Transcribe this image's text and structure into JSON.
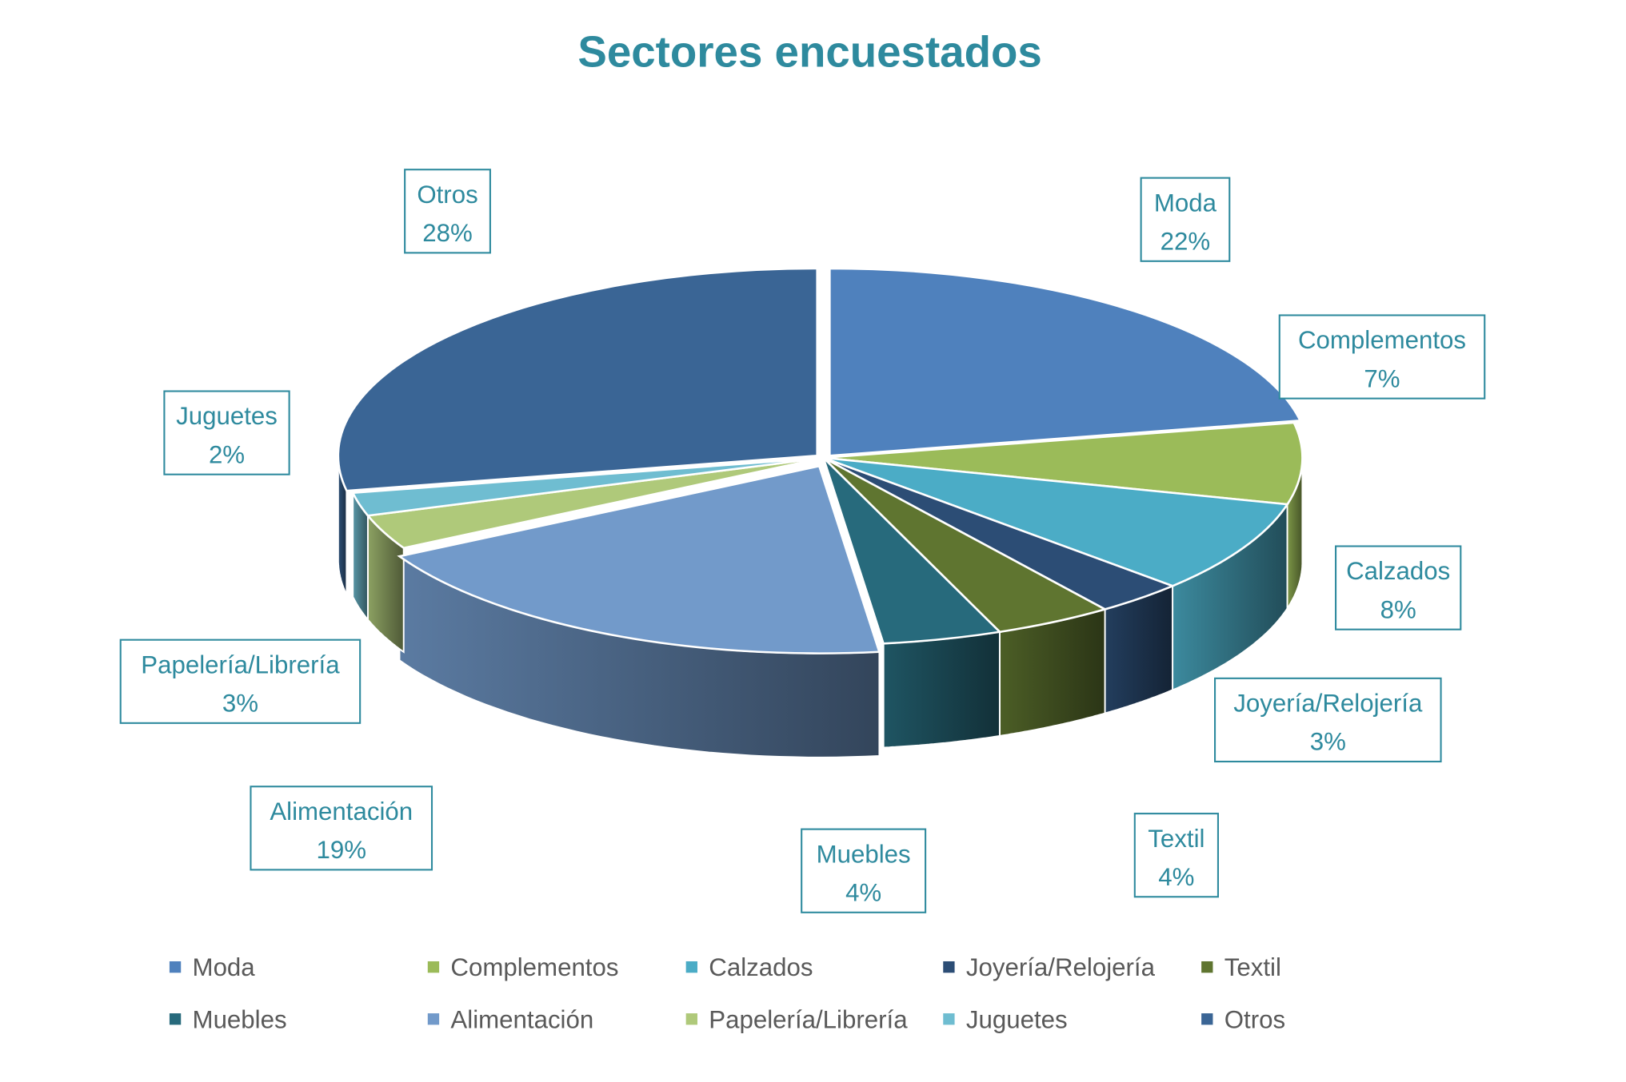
{
  "chart_data": {
    "type": "pie",
    "title": "Sectores encuestados",
    "categories": [
      "Moda",
      "Complementos",
      "Calzados",
      "Joyería/Relojería",
      "Textil",
      "Muebles",
      "Alimentación",
      "Papelería/Librería",
      "Juguetes",
      "Otros"
    ],
    "values": [
      22,
      7,
      8,
      3,
      4,
      4,
      19,
      3,
      2,
      28
    ],
    "labels": [
      "22%",
      "7%",
      "8%",
      "3%",
      "4%",
      "4%",
      "19%",
      "3%",
      "2%",
      "28%"
    ],
    "colors": [
      "#4F81BD",
      "#9BBB59",
      "#4BACC6",
      "#2C4D75",
      "#5F7530",
      "#276A7C",
      "#729ACA",
      "#AFC97A",
      "#6FBDD1",
      "#3A6595"
    ],
    "legend_position": "bottom",
    "style": "3d-pie"
  }
}
